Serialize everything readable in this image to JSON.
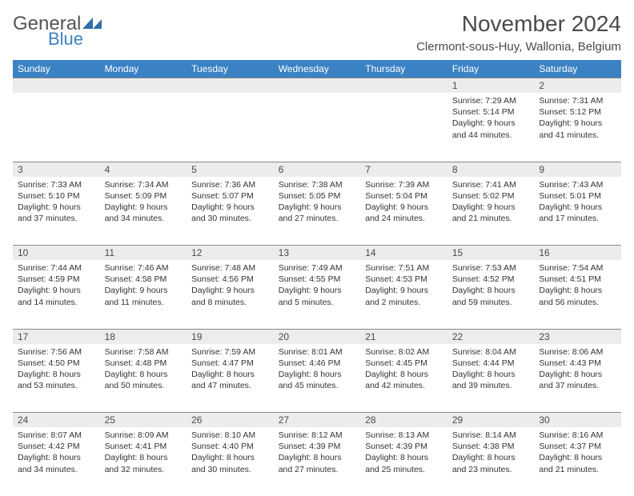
{
  "logo": {
    "text1": "General",
    "text2": "Blue",
    "mark_color": "#2f6fa8"
  },
  "header": {
    "month_title": "November 2024",
    "location": "Clermont-sous-Huy, Wallonia, Belgium"
  },
  "colors": {
    "header_bg": "#3b82c4",
    "daynum_bg": "#ececec",
    "border": "#888888",
    "text": "#333333"
  },
  "weekdays": [
    "Sunday",
    "Monday",
    "Tuesday",
    "Wednesday",
    "Thursday",
    "Friday",
    "Saturday"
  ],
  "weeks": [
    [
      null,
      null,
      null,
      null,
      null,
      {
        "num": "1",
        "sunrise": "Sunrise: 7:29 AM",
        "sunset": "Sunset: 5:14 PM",
        "daylight": "Daylight: 9 hours and 44 minutes."
      },
      {
        "num": "2",
        "sunrise": "Sunrise: 7:31 AM",
        "sunset": "Sunset: 5:12 PM",
        "daylight": "Daylight: 9 hours and 41 minutes."
      }
    ],
    [
      {
        "num": "3",
        "sunrise": "Sunrise: 7:33 AM",
        "sunset": "Sunset: 5:10 PM",
        "daylight": "Daylight: 9 hours and 37 minutes."
      },
      {
        "num": "4",
        "sunrise": "Sunrise: 7:34 AM",
        "sunset": "Sunset: 5:09 PM",
        "daylight": "Daylight: 9 hours and 34 minutes."
      },
      {
        "num": "5",
        "sunrise": "Sunrise: 7:36 AM",
        "sunset": "Sunset: 5:07 PM",
        "daylight": "Daylight: 9 hours and 30 minutes."
      },
      {
        "num": "6",
        "sunrise": "Sunrise: 7:38 AM",
        "sunset": "Sunset: 5:05 PM",
        "daylight": "Daylight: 9 hours and 27 minutes."
      },
      {
        "num": "7",
        "sunrise": "Sunrise: 7:39 AM",
        "sunset": "Sunset: 5:04 PM",
        "daylight": "Daylight: 9 hours and 24 minutes."
      },
      {
        "num": "8",
        "sunrise": "Sunrise: 7:41 AM",
        "sunset": "Sunset: 5:02 PM",
        "daylight": "Daylight: 9 hours and 21 minutes."
      },
      {
        "num": "9",
        "sunrise": "Sunrise: 7:43 AM",
        "sunset": "Sunset: 5:01 PM",
        "daylight": "Daylight: 9 hours and 17 minutes."
      }
    ],
    [
      {
        "num": "10",
        "sunrise": "Sunrise: 7:44 AM",
        "sunset": "Sunset: 4:59 PM",
        "daylight": "Daylight: 9 hours and 14 minutes."
      },
      {
        "num": "11",
        "sunrise": "Sunrise: 7:46 AM",
        "sunset": "Sunset: 4:58 PM",
        "daylight": "Daylight: 9 hours and 11 minutes."
      },
      {
        "num": "12",
        "sunrise": "Sunrise: 7:48 AM",
        "sunset": "Sunset: 4:56 PM",
        "daylight": "Daylight: 9 hours and 8 minutes."
      },
      {
        "num": "13",
        "sunrise": "Sunrise: 7:49 AM",
        "sunset": "Sunset: 4:55 PM",
        "daylight": "Daylight: 9 hours and 5 minutes."
      },
      {
        "num": "14",
        "sunrise": "Sunrise: 7:51 AM",
        "sunset": "Sunset: 4:53 PM",
        "daylight": "Daylight: 9 hours and 2 minutes."
      },
      {
        "num": "15",
        "sunrise": "Sunrise: 7:53 AM",
        "sunset": "Sunset: 4:52 PM",
        "daylight": "Daylight: 8 hours and 59 minutes."
      },
      {
        "num": "16",
        "sunrise": "Sunrise: 7:54 AM",
        "sunset": "Sunset: 4:51 PM",
        "daylight": "Daylight: 8 hours and 56 minutes."
      }
    ],
    [
      {
        "num": "17",
        "sunrise": "Sunrise: 7:56 AM",
        "sunset": "Sunset: 4:50 PM",
        "daylight": "Daylight: 8 hours and 53 minutes."
      },
      {
        "num": "18",
        "sunrise": "Sunrise: 7:58 AM",
        "sunset": "Sunset: 4:48 PM",
        "daylight": "Daylight: 8 hours and 50 minutes."
      },
      {
        "num": "19",
        "sunrise": "Sunrise: 7:59 AM",
        "sunset": "Sunset: 4:47 PM",
        "daylight": "Daylight: 8 hours and 47 minutes."
      },
      {
        "num": "20",
        "sunrise": "Sunrise: 8:01 AM",
        "sunset": "Sunset: 4:46 PM",
        "daylight": "Daylight: 8 hours and 45 minutes."
      },
      {
        "num": "21",
        "sunrise": "Sunrise: 8:02 AM",
        "sunset": "Sunset: 4:45 PM",
        "daylight": "Daylight: 8 hours and 42 minutes."
      },
      {
        "num": "22",
        "sunrise": "Sunrise: 8:04 AM",
        "sunset": "Sunset: 4:44 PM",
        "daylight": "Daylight: 8 hours and 39 minutes."
      },
      {
        "num": "23",
        "sunrise": "Sunrise: 8:06 AM",
        "sunset": "Sunset: 4:43 PM",
        "daylight": "Daylight: 8 hours and 37 minutes."
      }
    ],
    [
      {
        "num": "24",
        "sunrise": "Sunrise: 8:07 AM",
        "sunset": "Sunset: 4:42 PM",
        "daylight": "Daylight: 8 hours and 34 minutes."
      },
      {
        "num": "25",
        "sunrise": "Sunrise: 8:09 AM",
        "sunset": "Sunset: 4:41 PM",
        "daylight": "Daylight: 8 hours and 32 minutes."
      },
      {
        "num": "26",
        "sunrise": "Sunrise: 8:10 AM",
        "sunset": "Sunset: 4:40 PM",
        "daylight": "Daylight: 8 hours and 30 minutes."
      },
      {
        "num": "27",
        "sunrise": "Sunrise: 8:12 AM",
        "sunset": "Sunset: 4:39 PM",
        "daylight": "Daylight: 8 hours and 27 minutes."
      },
      {
        "num": "28",
        "sunrise": "Sunrise: 8:13 AM",
        "sunset": "Sunset: 4:39 PM",
        "daylight": "Daylight: 8 hours and 25 minutes."
      },
      {
        "num": "29",
        "sunrise": "Sunrise: 8:14 AM",
        "sunset": "Sunset: 4:38 PM",
        "daylight": "Daylight: 8 hours and 23 minutes."
      },
      {
        "num": "30",
        "sunrise": "Sunrise: 8:16 AM",
        "sunset": "Sunset: 4:37 PM",
        "daylight": "Daylight: 8 hours and 21 minutes."
      }
    ]
  ]
}
